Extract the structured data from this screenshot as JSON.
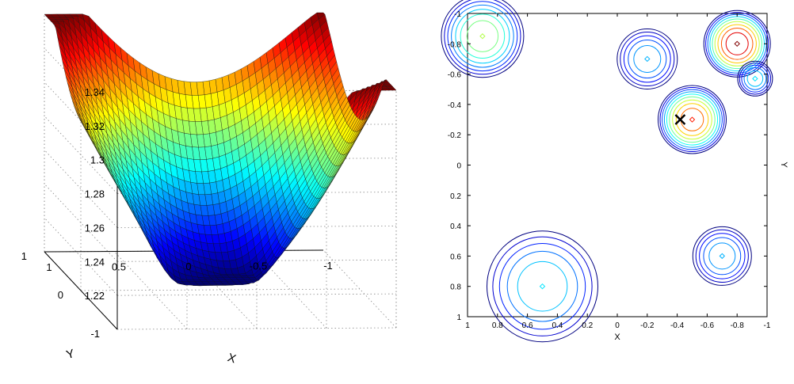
{
  "colors": {
    "background": "#ffffff",
    "axis": "#000000",
    "grid": "#888888",
    "mesh_edge": "#111111",
    "marker": "#000000",
    "colormap": [
      "#00008f",
      "#0000ff",
      "#007fff",
      "#00ffff",
      "#7fff7f",
      "#ffff00",
      "#ff7f00",
      "#ff0000",
      "#7f0000"
    ]
  },
  "chart_data": [
    {
      "type": "surface",
      "title": "",
      "xlabel": "X",
      "ylabel": "Y",
      "zlabel": "",
      "xlim": [
        -1,
        1
      ],
      "ylim": [
        -1,
        1
      ],
      "zlim": [
        1.2,
        1.34
      ],
      "x_ticks": [
        "1",
        "0.5",
        "0",
        "-0.5",
        "-1"
      ],
      "y_ticks": [
        "-1",
        "0",
        "1"
      ],
      "z_ticks": [
        "1.34",
        "1.32",
        "1.3",
        "1.28",
        "1.26",
        "1.24",
        "1.22"
      ],
      "z_tick_values": [
        1.34,
        1.32,
        1.3,
        1.28,
        1.26,
        1.24,
        1.22
      ],
      "grid": true,
      "colormap": "jet",
      "surface_range": {
        "min": 1.205,
        "max": 1.34
      }
    },
    {
      "type": "contour",
      "title": "",
      "xlabel": "X",
      "ylabel": "Y",
      "xlim": [
        1,
        -1
      ],
      "ylim": [
        -1,
        1
      ],
      "x_ticks": [
        "1",
        "0.8",
        "0.6",
        "0.4",
        "0.2",
        "0",
        "-0.2",
        "-0.4",
        "-0.6",
        "-0.8",
        "-1"
      ],
      "y_ticks": [
        "-1",
        "-0.8",
        "-0.6",
        "-0.4",
        "-0.2",
        "0",
        "0.2",
        "0.4",
        "0.6",
        "0.8",
        "1"
      ],
      "grid": false,
      "peaks": [
        {
          "x": 0.9,
          "y": -0.85,
          "peak_level": 0.55
        },
        {
          "x": -0.2,
          "y": -0.7,
          "peak_level": 0.3
        },
        {
          "x": -0.8,
          "y": -0.8,
          "peak_level": 1.0
        },
        {
          "x": -0.92,
          "y": -0.57,
          "peak_level": 0.35
        },
        {
          "x": -0.5,
          "y": -0.3,
          "peak_level": 0.85
        },
        {
          "x": 0.5,
          "y": 0.8,
          "peak_level": 0.35
        },
        {
          "x": -0.7,
          "y": 0.6,
          "peak_level": 0.3
        }
      ],
      "marker": {
        "symbol": "x",
        "x": -0.42,
        "y": -0.3
      }
    }
  ]
}
